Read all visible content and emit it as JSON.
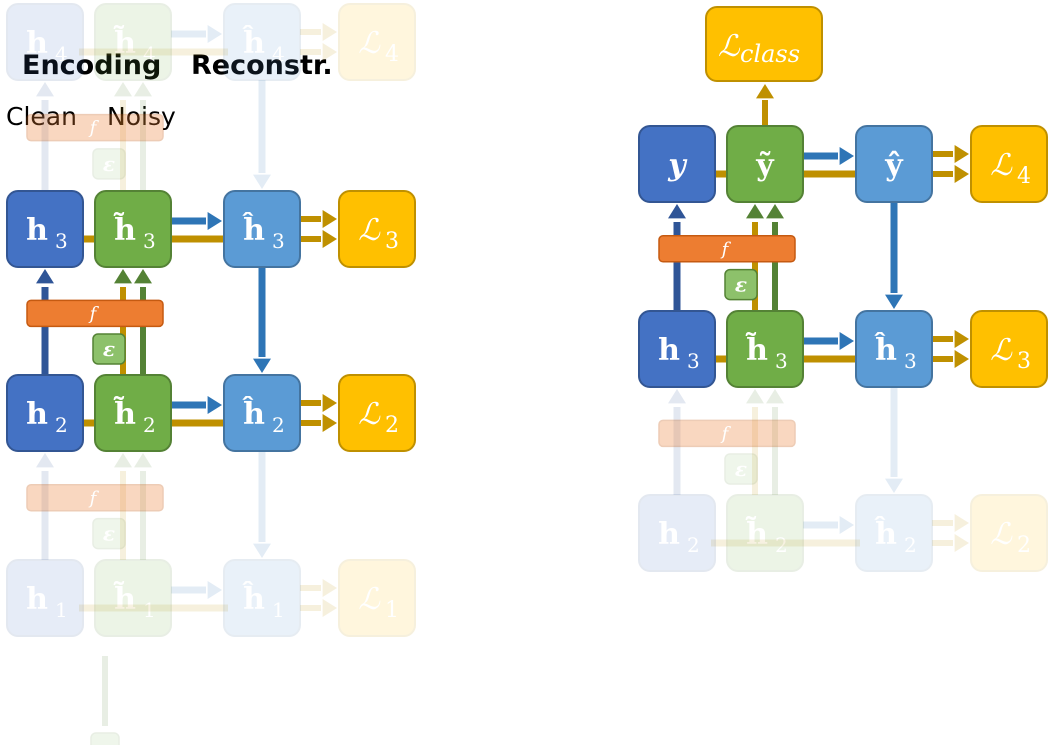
{
  "headers": {
    "encoding": "Encoding",
    "reconstr": "Reconstr.",
    "clean": "Clean",
    "noisy": "Noisy"
  },
  "colors": {
    "clean": "#4472C4",
    "noisy": "#70AD47",
    "recon": "#5B9BD5",
    "loss": "#FFC000",
    "f_bar": "#ED7D31",
    "arrow_clean": "#2F5597",
    "arrow_noisy": "#548235",
    "arrow_recon": "#2E75B6",
    "arrow_loss": "#BF9000"
  },
  "left_diagram": {
    "rows": [
      {
        "level": "4",
        "clean": "h",
        "noisy": "h̃",
        "recon": "ĥ",
        "loss": "ℒ",
        "faded": true
      },
      {
        "level": "3",
        "clean": "h",
        "noisy": "h̃",
        "recon": "ĥ",
        "loss": "ℒ",
        "faded": false
      },
      {
        "level": "2",
        "clean": "h",
        "noisy": "h̃",
        "recon": "ĥ",
        "loss": "ℒ",
        "faded": false
      },
      {
        "level": "1",
        "clean": "h",
        "noisy": "h̃",
        "recon": "ĥ",
        "loss": "ℒ",
        "faded": true
      }
    ],
    "f_label": "f",
    "noise_label": "ε"
  },
  "right_diagram": {
    "top_loss": {
      "symbol": "ℒ",
      "sub": "class"
    },
    "rows": [
      {
        "level": "4",
        "clean": "y",
        "noisy": "ỹ",
        "recon": "ŷ",
        "loss": "ℒ",
        "faded": false
      },
      {
        "level": "3",
        "clean": "h",
        "noisy": "h̃",
        "recon": "ĥ",
        "loss": "ℒ",
        "faded": false
      },
      {
        "level": "2",
        "clean": "h",
        "noisy": "h̃",
        "recon": "ĥ",
        "loss": "ℒ",
        "faded": true
      }
    ],
    "f_label": "f",
    "noise_label": "ε"
  }
}
